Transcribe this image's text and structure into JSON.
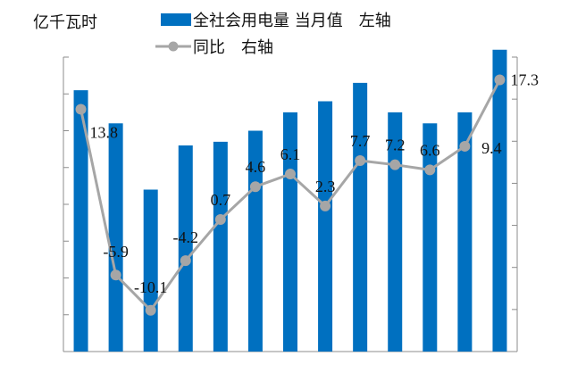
{
  "chart_data": {
    "type": "bar",
    "title": "",
    "left_axis_unit": "亿千瓦时",
    "categories": [
      "",
      "",
      "",
      "",
      "",
      "",
      "",
      "",
      "",
      "",
      "",
      "",
      ""
    ],
    "left_axis_range": [
      0,
      8
    ],
    "right_axis_range": [
      -15,
      20
    ],
    "left_axis_gridlines": false,
    "legend_position": "top",
    "series": [
      {
        "name": "全社会用电量 当月值　左轴",
        "type": "bar",
        "axis": "left",
        "color": "#0070c0",
        "values": [
          7.1,
          6.2,
          4.4,
          5.6,
          5.7,
          6.0,
          6.5,
          6.8,
          7.3,
          6.5,
          6.2,
          6.5,
          8.2
        ]
      },
      {
        "name": "同比　右轴",
        "type": "line",
        "axis": "right",
        "color": "#a6a6a6",
        "values": [
          13.8,
          -5.9,
          -10.1,
          -4.2,
          0.7,
          4.6,
          6.1,
          2.3,
          7.7,
          7.2,
          6.6,
          9.4,
          17.3
        ],
        "data_labels": [
          "13.8",
          "-5.9",
          "-10.1",
          "-4.2",
          "0.7",
          "4.6",
          "6.1",
          "2.3",
          "7.7",
          "7.2",
          "6.6",
          "9.4",
          "17.3"
        ]
      }
    ]
  }
}
